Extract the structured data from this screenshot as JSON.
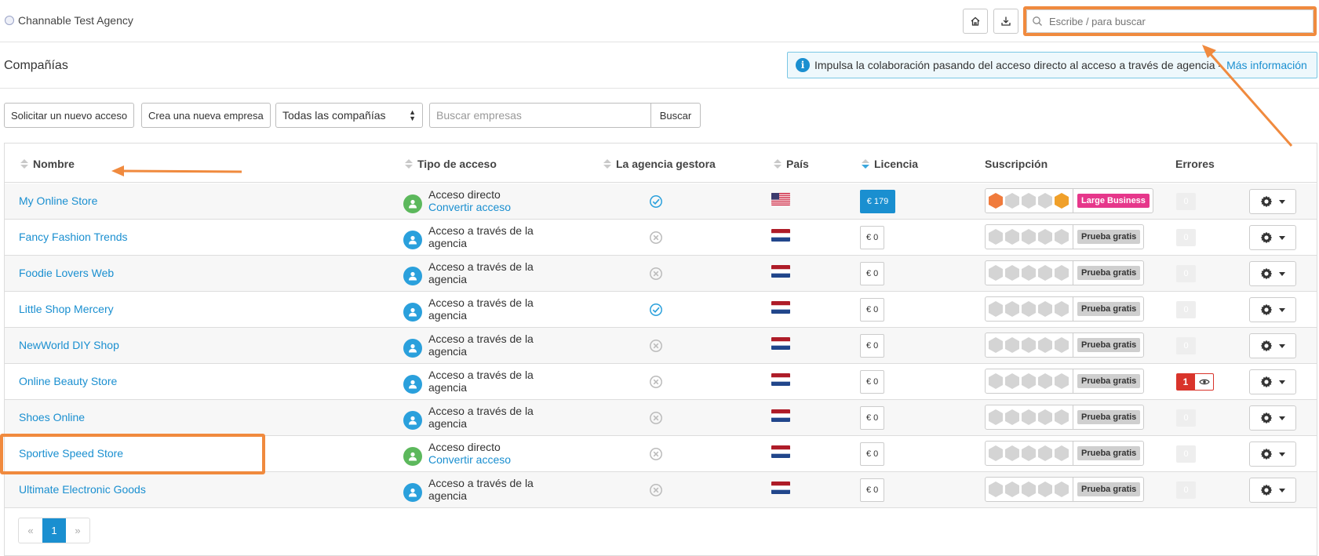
{
  "topbar": {
    "agency_name": "Channable Test Agency",
    "search_placeholder": "Escribe / para buscar"
  },
  "header": {
    "title": "Compañías",
    "notice_text": "Impulsa la colaboración pasando del acceso directo al acceso a través de agencia - ",
    "notice_link": "Más información"
  },
  "toolbar": {
    "request_access": "Solicitar un nuevo acceso",
    "create_company": "Crea una nueva empresa",
    "filter_selected": "Todas las compañías",
    "search_placeholder": "Buscar empresas",
    "search_button": "Buscar"
  },
  "table": {
    "columns": {
      "name": "Nombre",
      "access_type": "Tipo de acceso",
      "managing_agency": "La agencia gestora",
      "country": "País",
      "license": "Licencia",
      "subscription": "Suscripción",
      "errors": "Errores"
    },
    "rows": [
      {
        "name": "My Online Store",
        "access_line1": "Acceso directo",
        "access_line2": "Convertir acceso",
        "access_kind": "direct",
        "agency_managed": true,
        "country": "US",
        "license": "€ 179",
        "plan": "Large Business",
        "errors": "0"
      },
      {
        "name": "Fancy Fashion Trends",
        "access_line1": "Acceso a través de la",
        "access_line2": "agencia",
        "access_kind": "agency",
        "agency_managed": false,
        "country": "NL",
        "license": "€ 0",
        "plan": "Prueba gratis",
        "errors": "0"
      },
      {
        "name": "Foodie Lovers Web",
        "access_line1": "Acceso a través de la",
        "access_line2": "agencia",
        "access_kind": "agency",
        "agency_managed": false,
        "country": "NL",
        "license": "€ 0",
        "plan": "Prueba gratis",
        "errors": "0"
      },
      {
        "name": "Little Shop Mercery",
        "access_line1": "Acceso a través de la",
        "access_line2": "agencia",
        "access_kind": "agency",
        "agency_managed": true,
        "country": "NL",
        "license": "€ 0",
        "plan": "Prueba gratis",
        "errors": "0"
      },
      {
        "name": "NewWorld DIY Shop",
        "access_line1": "Acceso a través de la",
        "access_line2": "agencia",
        "access_kind": "agency",
        "agency_managed": false,
        "country": "NL",
        "license": "€ 0",
        "plan": "Prueba gratis",
        "errors": "0"
      },
      {
        "name": "Online Beauty Store",
        "access_line1": "Acceso a través de la",
        "access_line2": "agencia",
        "access_kind": "agency",
        "agency_managed": false,
        "country": "NL",
        "license": "€ 0",
        "plan": "Prueba gratis",
        "errors": "1"
      },
      {
        "name": "Shoes Online",
        "access_line1": "Acceso a través de la",
        "access_line2": "agencia",
        "access_kind": "agency",
        "agency_managed": false,
        "country": "NL",
        "license": "€ 0",
        "plan": "Prueba gratis",
        "errors": "0"
      },
      {
        "name": "Sportive Speed Store",
        "access_line1": "Acceso directo",
        "access_line2": "Convertir acceso",
        "access_kind": "direct",
        "agency_managed": false,
        "country": "NL",
        "license": "€ 0",
        "plan": "Prueba gratis",
        "errors": "0"
      },
      {
        "name": "Ultimate Electronic Goods",
        "access_line1": "Acceso a través de la",
        "access_line2": "agencia",
        "access_kind": "agency",
        "agency_managed": false,
        "country": "NL",
        "license": "€ 0",
        "plan": "Prueba gratis",
        "errors": "0"
      }
    ]
  },
  "pagination": {
    "prev": "«",
    "current": "1",
    "next": "»"
  },
  "colors": {
    "accent": "#1a8fd0",
    "annotation": "#f08a3e",
    "large_business": "#e6378b",
    "error": "#d9342b"
  }
}
